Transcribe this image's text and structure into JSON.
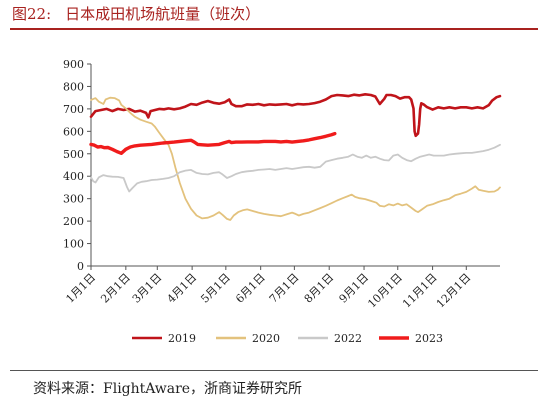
{
  "figure": {
    "number": "图22:",
    "title": "日本成田机场航班量（班次）",
    "source": "资料来源：FlightAware，浙商证券研究所"
  },
  "chart_data": {
    "type": "line",
    "title": "",
    "xlabel": "",
    "ylabel": "",
    "ylim": [
      0,
      900
    ],
    "yticks": [
      0,
      100,
      200,
      300,
      400,
      500,
      600,
      700,
      800,
      900
    ],
    "xlim": [
      1,
      365
    ],
    "x_tick_labels": [
      "1月1日",
      "2月1日",
      "3月1日",
      "4月1日",
      "5月1日",
      "6月1日",
      "7月1日",
      "8月1日",
      "9月1日",
      "10月1日",
      "11月1日",
      "12月1日"
    ],
    "x_tick_days": [
      1,
      32,
      60,
      91,
      121,
      152,
      182,
      213,
      244,
      274,
      305,
      335
    ],
    "grid": false,
    "legend_position": "bottom",
    "series": [
      {
        "name": "2019",
        "color": "#c0141a",
        "width": 2.6,
        "points": [
          [
            1,
            665
          ],
          [
            5,
            690
          ],
          [
            10,
            695
          ],
          [
            15,
            700
          ],
          [
            20,
            690
          ],
          [
            25,
            700
          ],
          [
            30,
            695
          ],
          [
            35,
            700
          ],
          [
            40,
            688
          ],
          [
            45,
            692
          ],
          [
            50,
            682
          ],
          [
            52,
            662
          ],
          [
            54,
            690
          ],
          [
            58,
            695
          ],
          [
            62,
            700
          ],
          [
            66,
            698
          ],
          [
            70,
            702
          ],
          [
            75,
            698
          ],
          [
            80,
            702
          ],
          [
            85,
            710
          ],
          [
            90,
            722
          ],
          [
            95,
            718
          ],
          [
            100,
            728
          ],
          [
            105,
            735
          ],
          [
            110,
            727
          ],
          [
            115,
            723
          ],
          [
            120,
            730
          ],
          [
            124,
            742
          ],
          [
            126,
            722
          ],
          [
            130,
            712
          ],
          [
            135,
            712
          ],
          [
            140,
            720
          ],
          [
            145,
            718
          ],
          [
            150,
            722
          ],
          [
            155,
            716
          ],
          [
            160,
            720
          ],
          [
            165,
            718
          ],
          [
            170,
            720
          ],
          [
            175,
            722
          ],
          [
            180,
            716
          ],
          [
            185,
            722
          ],
          [
            190,
            720
          ],
          [
            195,
            722
          ],
          [
            200,
            726
          ],
          [
            205,
            732
          ],
          [
            210,
            742
          ],
          [
            215,
            757
          ],
          [
            220,
            762
          ],
          [
            225,
            760
          ],
          [
            230,
            757
          ],
          [
            235,
            763
          ],
          [
            240,
            760
          ],
          [
            245,
            765
          ],
          [
            250,
            762
          ],
          [
            254,
            755
          ],
          [
            258,
            722
          ],
          [
            262,
            745
          ],
          [
            264,
            762
          ],
          [
            268,
            762
          ],
          [
            272,
            757
          ],
          [
            276,
            746
          ],
          [
            280,
            752
          ],
          [
            284,
            752
          ],
          [
            286,
            742
          ],
          [
            288,
            702
          ],
          [
            289,
            600
          ],
          [
            290,
            580
          ],
          [
            292,
            590
          ],
          [
            293,
            630
          ],
          [
            294,
            700
          ],
          [
            295,
            725
          ],
          [
            297,
            720
          ],
          [
            300,
            708
          ],
          [
            305,
            697
          ],
          [
            310,
            707
          ],
          [
            315,
            702
          ],
          [
            320,
            707
          ],
          [
            325,
            702
          ],
          [
            330,
            707
          ],
          [
            335,
            707
          ],
          [
            340,
            702
          ],
          [
            345,
            707
          ],
          [
            350,
            702
          ],
          [
            355,
            717
          ],
          [
            358,
            737
          ],
          [
            362,
            752
          ],
          [
            365,
            757
          ]
        ]
      },
      {
        "name": "2020",
        "color": "#e3c27d",
        "width": 1.8,
        "points": [
          [
            1,
            740
          ],
          [
            5,
            748
          ],
          [
            8,
            732
          ],
          [
            12,
            722
          ],
          [
            14,
            742
          ],
          [
            18,
            750
          ],
          [
            22,
            748
          ],
          [
            26,
            738
          ],
          [
            28,
            718
          ],
          [
            32,
            702
          ],
          [
            36,
            682
          ],
          [
            40,
            665
          ],
          [
            45,
            652
          ],
          [
            50,
            643
          ],
          [
            55,
            635
          ],
          [
            58,
            620
          ],
          [
            62,
            592
          ],
          [
            66,
            565
          ],
          [
            70,
            540
          ],
          [
            73,
            500
          ],
          [
            76,
            440
          ],
          [
            80,
            370
          ],
          [
            85,
            300
          ],
          [
            90,
            255
          ],
          [
            95,
            225
          ],
          [
            100,
            212
          ],
          [
            105,
            215
          ],
          [
            110,
            225
          ],
          [
            115,
            240
          ],
          [
            118,
            228
          ],
          [
            122,
            210
          ],
          [
            125,
            205
          ],
          [
            128,
            225
          ],
          [
            132,
            240
          ],
          [
            136,
            248
          ],
          [
            140,
            252
          ],
          [
            145,
            245
          ],
          [
            150,
            238
          ],
          [
            155,
            232
          ],
          [
            160,
            228
          ],
          [
            165,
            225
          ],
          [
            170,
            222
          ],
          [
            175,
            230
          ],
          [
            180,
            238
          ],
          [
            183,
            232
          ],
          [
            186,
            225
          ],
          [
            190,
            232
          ],
          [
            195,
            238
          ],
          [
            200,
            248
          ],
          [
            205,
            258
          ],
          [
            210,
            268
          ],
          [
            215,
            280
          ],
          [
            220,
            292
          ],
          [
            225,
            302
          ],
          [
            230,
            312
          ],
          [
            233,
            318
          ],
          [
            236,
            308
          ],
          [
            240,
            302
          ],
          [
            245,
            298
          ],
          [
            250,
            290
          ],
          [
            255,
            282
          ],
          [
            258,
            268
          ],
          [
            262,
            265
          ],
          [
            266,
            275
          ],
          [
            270,
            270
          ],
          [
            274,
            278
          ],
          [
            278,
            270
          ],
          [
            282,
            275
          ],
          [
            286,
            260
          ],
          [
            290,
            245
          ],
          [
            292,
            240
          ],
          [
            295,
            250
          ],
          [
            300,
            268
          ],
          [
            305,
            275
          ],
          [
            310,
            285
          ],
          [
            315,
            293
          ],
          [
            320,
            300
          ],
          [
            325,
            315
          ],
          [
            330,
            322
          ],
          [
            335,
            330
          ],
          [
            340,
            345
          ],
          [
            343,
            355
          ],
          [
            346,
            340
          ],
          [
            350,
            335
          ],
          [
            355,
            330
          ],
          [
            360,
            332
          ],
          [
            363,
            340
          ],
          [
            365,
            350
          ]
        ]
      },
      {
        "name": "2022",
        "color": "#c9c9c9",
        "width": 1.8,
        "points": [
          [
            1,
            395
          ],
          [
            3,
            378
          ],
          [
            5,
            372
          ],
          [
            8,
            395
          ],
          [
            12,
            405
          ],
          [
            16,
            400
          ],
          [
            20,
            398
          ],
          [
            25,
            397
          ],
          [
            30,
            392
          ],
          [
            33,
            352
          ],
          [
            35,
            332
          ],
          [
            38,
            348
          ],
          [
            42,
            368
          ],
          [
            46,
            375
          ],
          [
            50,
            378
          ],
          [
            55,
            383
          ],
          [
            60,
            385
          ],
          [
            65,
            388
          ],
          [
            70,
            392
          ],
          [
            75,
            400
          ],
          [
            80,
            418
          ],
          [
            85,
            425
          ],
          [
            90,
            428
          ],
          [
            95,
            415
          ],
          [
            100,
            410
          ],
          [
            105,
            408
          ],
          [
            110,
            415
          ],
          [
            115,
            418
          ],
          [
            118,
            408
          ],
          [
            122,
            392
          ],
          [
            126,
            400
          ],
          [
            130,
            410
          ],
          [
            135,
            418
          ],
          [
            140,
            422
          ],
          [
            145,
            424
          ],
          [
            150,
            428
          ],
          [
            155,
            430
          ],
          [
            160,
            432
          ],
          [
            165,
            428
          ],
          [
            170,
            432
          ],
          [
            175,
            436
          ],
          [
            180,
            432
          ],
          [
            185,
            436
          ],
          [
            190,
            440
          ],
          [
            195,
            442
          ],
          [
            200,
            438
          ],
          [
            205,
            442
          ],
          [
            210,
            465
          ],
          [
            215,
            472
          ],
          [
            220,
            478
          ],
          [
            225,
            482
          ],
          [
            230,
            487
          ],
          [
            234,
            497
          ],
          [
            238,
            487
          ],
          [
            242,
            482
          ],
          [
            246,
            492
          ],
          [
            250,
            482
          ],
          [
            254,
            487
          ],
          [
            258,
            478
          ],
          [
            262,
            472
          ],
          [
            266,
            470
          ],
          [
            270,
            492
          ],
          [
            274,
            497
          ],
          [
            278,
            482
          ],
          [
            282,
            472
          ],
          [
            286,
            467
          ],
          [
            290,
            478
          ],
          [
            294,
            487
          ],
          [
            298,
            492
          ],
          [
            302,
            497
          ],
          [
            306,
            492
          ],
          [
            310,
            492
          ],
          [
            315,
            492
          ],
          [
            320,
            497
          ],
          [
            325,
            500
          ],
          [
            330,
            502
          ],
          [
            335,
            504
          ],
          [
            340,
            504
          ],
          [
            345,
            508
          ],
          [
            350,
            512
          ],
          [
            355,
            518
          ],
          [
            360,
            527
          ],
          [
            365,
            540
          ]
        ]
      },
      {
        "name": "2023",
        "color": "#f01c1c",
        "width": 3.4,
        "points": [
          [
            1,
            542
          ],
          [
            4,
            538
          ],
          [
            7,
            530
          ],
          [
            10,
            532
          ],
          [
            13,
            527
          ],
          [
            16,
            528
          ],
          [
            20,
            520
          ],
          [
            24,
            510
          ],
          [
            28,
            502
          ],
          [
            32,
            520
          ],
          [
            36,
            530
          ],
          [
            40,
            535
          ],
          [
            45,
            538
          ],
          [
            50,
            540
          ],
          [
            55,
            542
          ],
          [
            60,
            545
          ],
          [
            65,
            548
          ],
          [
            70,
            550
          ],
          [
            75,
            552
          ],
          [
            80,
            555
          ],
          [
            85,
            558
          ],
          [
            90,
            560
          ],
          [
            93,
            552
          ],
          [
            96,
            542
          ],
          [
            100,
            540
          ],
          [
            105,
            538
          ],
          [
            110,
            540
          ],
          [
            115,
            542
          ],
          [
            120,
            550
          ],
          [
            124,
            555
          ],
          [
            126,
            550
          ],
          [
            130,
            552
          ],
          [
            135,
            552
          ],
          [
            140,
            553
          ],
          [
            145,
            553
          ],
          [
            150,
            553
          ],
          [
            155,
            555
          ],
          [
            160,
            555
          ],
          [
            165,
            555
          ],
          [
            170,
            553
          ],
          [
            175,
            555
          ],
          [
            180,
            552
          ],
          [
            185,
            555
          ],
          [
            190,
            558
          ],
          [
            195,
            562
          ],
          [
            200,
            567
          ],
          [
            205,
            572
          ],
          [
            210,
            578
          ],
          [
            215,
            585
          ],
          [
            218,
            590
          ]
        ]
      }
    ]
  }
}
